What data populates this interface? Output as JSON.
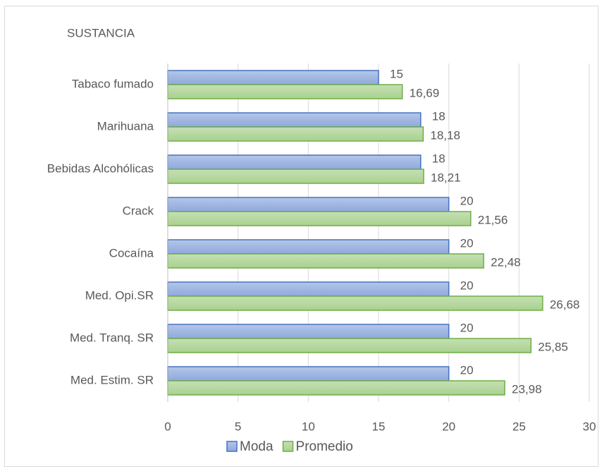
{
  "chart_data": {
    "type": "bar",
    "orientation": "horizontal",
    "title": "SUSTANCIA",
    "categories": [
      "Tabaco fumado",
      "Marihuana",
      "Bebidas Alcohólicas",
      "Crack",
      "Cocaína",
      "Med. Opi.SR",
      "Med. Tranq. SR",
      "Med. Estim. SR"
    ],
    "series": [
      {
        "name": "Moda",
        "color": "#8fa8de",
        "values": [
          15,
          18,
          18,
          20,
          20,
          20,
          20,
          20
        ]
      },
      {
        "name": "Promedio",
        "color": "#a9d18e",
        "values": [
          16.69,
          18.18,
          18.21,
          21.56,
          22.48,
          26.68,
          25.85,
          23.98
        ],
        "value_labels": [
          "16,69",
          "18,18",
          "18,21",
          "21,56",
          "22,48",
          "26,68",
          "25,85",
          "23,98"
        ]
      }
    ],
    "xlim": [
      0,
      30
    ],
    "xticks": [
      0,
      5,
      10,
      15,
      20,
      25,
      30
    ],
    "grid": true,
    "legend": "bottom"
  }
}
